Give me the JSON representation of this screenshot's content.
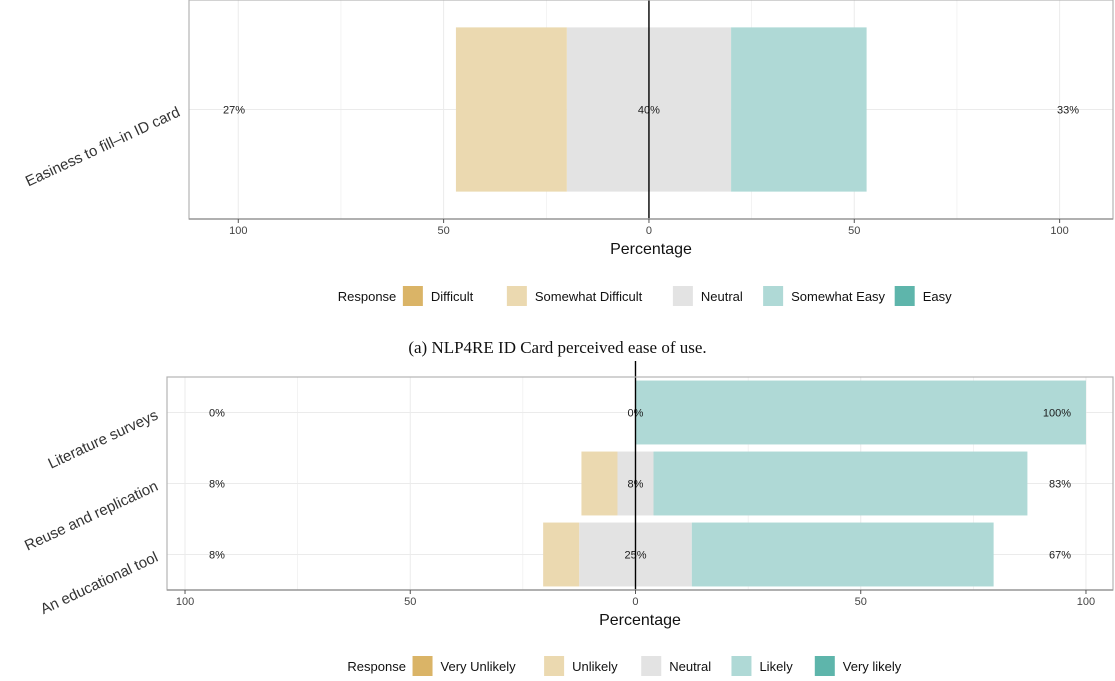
{
  "colors": {
    "Difficult": "#dab467",
    "Somewhat Difficult": "#ebd9b0",
    "Neutral": "#e3e3e3",
    "Somewhat Easy": "#afd9d6",
    "Easy": "#5eb5ab",
    "Very Unlikely": "#dab467",
    "Unlikely": "#ebd9b0",
    "Likely": "#afd9d6",
    "Very likely": "#5eb5ab",
    "panel_border": "#b3b3b3",
    "grid": "#ebebeb",
    "zero_line": "#000000"
  },
  "chart_data": [
    {
      "type": "bar",
      "orientation": "horizontal-diverging",
      "caption": "(a) NLP4RE ID Card perceived ease of use.",
      "xlabel": "Percentage",
      "xlim": [
        -112,
        113
      ],
      "x_ticks": [
        {
          "value": -100,
          "label": "100"
        },
        {
          "value": -50,
          "label": "50"
        },
        {
          "value": 0,
          "label": "0"
        },
        {
          "value": 50,
          "label": "50"
        },
        {
          "value": 100,
          "label": "100"
        }
      ],
      "grid": true,
      "legend": {
        "title": "Response",
        "position": "bottom",
        "items": [
          "Difficult",
          "Somewhat Difficult",
          "Neutral",
          "Somewhat Easy",
          "Easy"
        ]
      },
      "categories": [
        "Easiness to fill–in ID card"
      ],
      "series": [
        {
          "name": "Difficult",
          "values": [
            0
          ]
        },
        {
          "name": "Somewhat Difficult",
          "values": [
            27
          ]
        },
        {
          "name": "Neutral",
          "values": [
            40
          ]
        },
        {
          "name": "Somewhat Easy",
          "values": [
            33
          ]
        },
        {
          "name": "Easy",
          "values": [
            0
          ]
        }
      ],
      "labels": [
        {
          "left": "27%",
          "center": "40%",
          "right": "33%"
        }
      ]
    },
    {
      "type": "bar",
      "orientation": "horizontal-diverging",
      "xlabel": "Percentage",
      "xlim": [
        -104,
        106
      ],
      "x_ticks": [
        {
          "value": -100,
          "label": "100"
        },
        {
          "value": -50,
          "label": "50"
        },
        {
          "value": 0,
          "label": "0"
        },
        {
          "value": 50,
          "label": "50"
        },
        {
          "value": 100,
          "label": "100"
        }
      ],
      "grid": true,
      "legend": {
        "title": "Response",
        "position": "bottom",
        "items": [
          "Very Unlikely",
          "Unlikely",
          "Neutral",
          "Likely",
          "Very likely"
        ]
      },
      "categories": [
        "Literature surveys",
        "Reuse and replication",
        "An educational tool"
      ],
      "series": [
        {
          "name": "Very Unlikely",
          "values": [
            0,
            0,
            0
          ]
        },
        {
          "name": "Unlikely",
          "values": [
            0,
            8,
            8
          ]
        },
        {
          "name": "Neutral",
          "values": [
            0,
            8,
            25
          ]
        },
        {
          "name": "Likely",
          "values": [
            100,
            83,
            67
          ]
        },
        {
          "name": "Very likely",
          "values": [
            0,
            0,
            0
          ]
        }
      ],
      "labels": [
        {
          "left": "0%",
          "center": "0%",
          "right": "100%"
        },
        {
          "left": "8%",
          "center": "8%",
          "right": "83%"
        },
        {
          "left": "8%",
          "center": "25%",
          "right": "67%"
        }
      ]
    }
  ]
}
